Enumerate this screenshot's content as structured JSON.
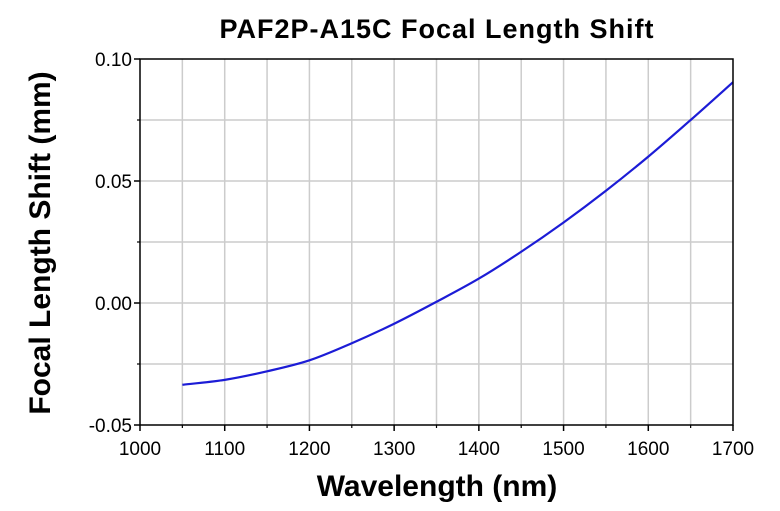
{
  "chart_data": {
    "type": "line",
    "title": "PAF2P-A15C Focal Length Shift",
    "xlabel": "Wavelength (nm)",
    "ylabel": "Focal Length Shift (mm)",
    "xlim": [
      1000,
      1700
    ],
    "ylim": [
      -0.05,
      0.1
    ],
    "x_ticks": [
      "1000",
      "1100",
      "1200",
      "1300",
      "1400",
      "1500",
      "1600",
      "1700"
    ],
    "y_ticks": [
      "-0.05",
      "0.00",
      "0.05",
      "0.10"
    ],
    "x_tick_values": [
      1000,
      1100,
      1200,
      1300,
      1400,
      1500,
      1600,
      1700
    ],
    "y_tick_values": [
      -0.05,
      0.0,
      0.05,
      0.1
    ],
    "grid": true,
    "series": [
      {
        "color": "#1c1cd6",
        "x": [
          1050,
          1100,
          1150,
          1200,
          1250,
          1300,
          1350,
          1400,
          1450,
          1500,
          1550,
          1600,
          1650,
          1700
        ],
        "y": [
          -0.0335,
          -0.0315,
          -0.028,
          -0.0235,
          -0.0165,
          -0.0085,
          0.0005,
          0.01,
          0.021,
          0.033,
          0.046,
          0.06,
          0.075,
          0.0905
        ]
      }
    ]
  }
}
